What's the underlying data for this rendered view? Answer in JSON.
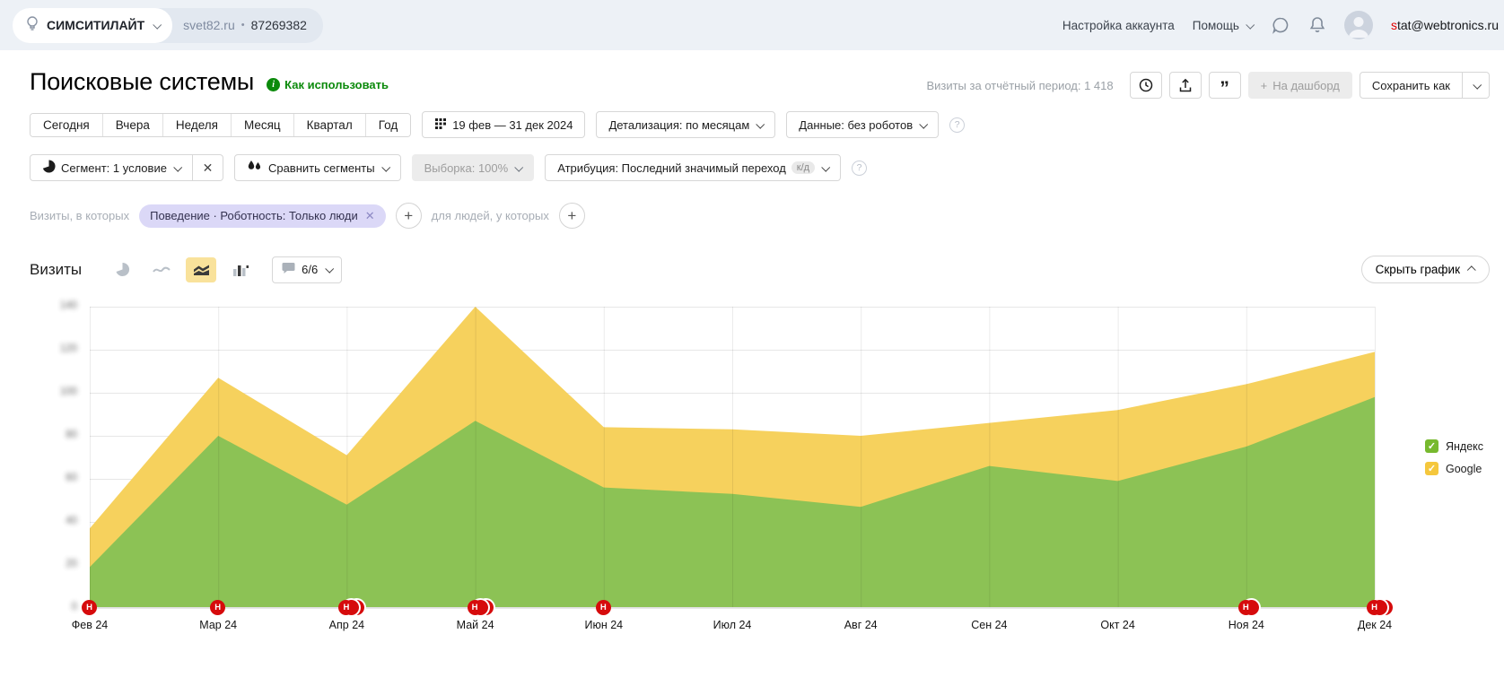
{
  "header": {
    "brand": "СИМСИТИЛАЙТ",
    "site": "svet82.ru",
    "separator": "•",
    "counter_id": "87269382",
    "account_settings": "Настройка аккаунта",
    "help": "Помощь",
    "email_highlight": "s",
    "email_rest": "tat@webtronics.ru"
  },
  "title_row": {
    "title": "Поисковые системы",
    "how_to_use": "Как использовать",
    "visits_summary": "Визиты за отчётный период: 1 418",
    "dashboard_button": "На дашборд",
    "save_as_button": "Сохранить как"
  },
  "filters_row1": {
    "period_tabs": [
      "Сегодня",
      "Вчера",
      "Неделя",
      "Месяц",
      "Квартал",
      "Год"
    ],
    "date_range": "19 фев — 31 дек 2024",
    "detalization": "Детализация: по месяцам",
    "data_mode": "Данные: без роботов"
  },
  "filters_row2": {
    "segment": "Сегмент: 1 условие",
    "compare_segments": "Сравнить сегменты",
    "sampling": "Выборка: 100%",
    "attribution": "Атрибуция: Последний значимый переход",
    "attribution_badge": "к/д"
  },
  "segment_chips": {
    "visits_label": "Визиты, в которых",
    "chip_label": "Поведение · Роботность: Только люди",
    "people_label": "для людей, у которых"
  },
  "chart_controls": {
    "metric_label": "Визиты",
    "annotations_count": "6/6",
    "hide_chart_button": "Скрыть график"
  },
  "chart_data": {
    "type": "area",
    "stacked": true,
    "title": "Визиты",
    "x": [
      "Фев 24",
      "Мар 24",
      "Апр 24",
      "Май 24",
      "Июн 24",
      "Июл 24",
      "Авг 24",
      "Сен 24",
      "Окт 24",
      "Ноя 24",
      "Дек 24"
    ],
    "series": [
      {
        "name": "Яндекс",
        "color": "#8cc255",
        "values": [
          19,
          80,
          48,
          87,
          56,
          53,
          47,
          66,
          59,
          75,
          98
        ]
      },
      {
        "name": "Google",
        "color": "#f6d15d",
        "values": [
          18,
          27,
          23,
          53,
          28,
          30,
          33,
          20,
          33,
          29,
          21
        ]
      }
    ],
    "ylim": [
      0,
      140
    ],
    "y_ticks": [
      0,
      20,
      40,
      60,
      80,
      100,
      120,
      140
    ],
    "y_tick_labels_blurred": true,
    "grid": true,
    "legend_position": "right",
    "legend": [
      {
        "label": "Яндекс",
        "checkbox_color": "#77b92e",
        "checked": true
      },
      {
        "label": "Google",
        "checkbox_color": "#f5c73d",
        "checked": true
      }
    ],
    "annotation_markers": [
      {
        "x": "Фев 24",
        "count": 1,
        "label": "Н"
      },
      {
        "x": "Мар 24",
        "count": 1,
        "label": "Н"
      },
      {
        "x": "Апр 24",
        "count": 3,
        "label": "Н"
      },
      {
        "x": "Май 24",
        "count": 3,
        "label": "Н"
      },
      {
        "x": "Июн 24",
        "count": 1,
        "label": "Н"
      },
      {
        "x": "Ноя 24",
        "count": 2,
        "label": "Н"
      },
      {
        "x": "Дек 24",
        "count": 3,
        "label": "Н"
      }
    ],
    "marker_color": "#d60b0c"
  }
}
